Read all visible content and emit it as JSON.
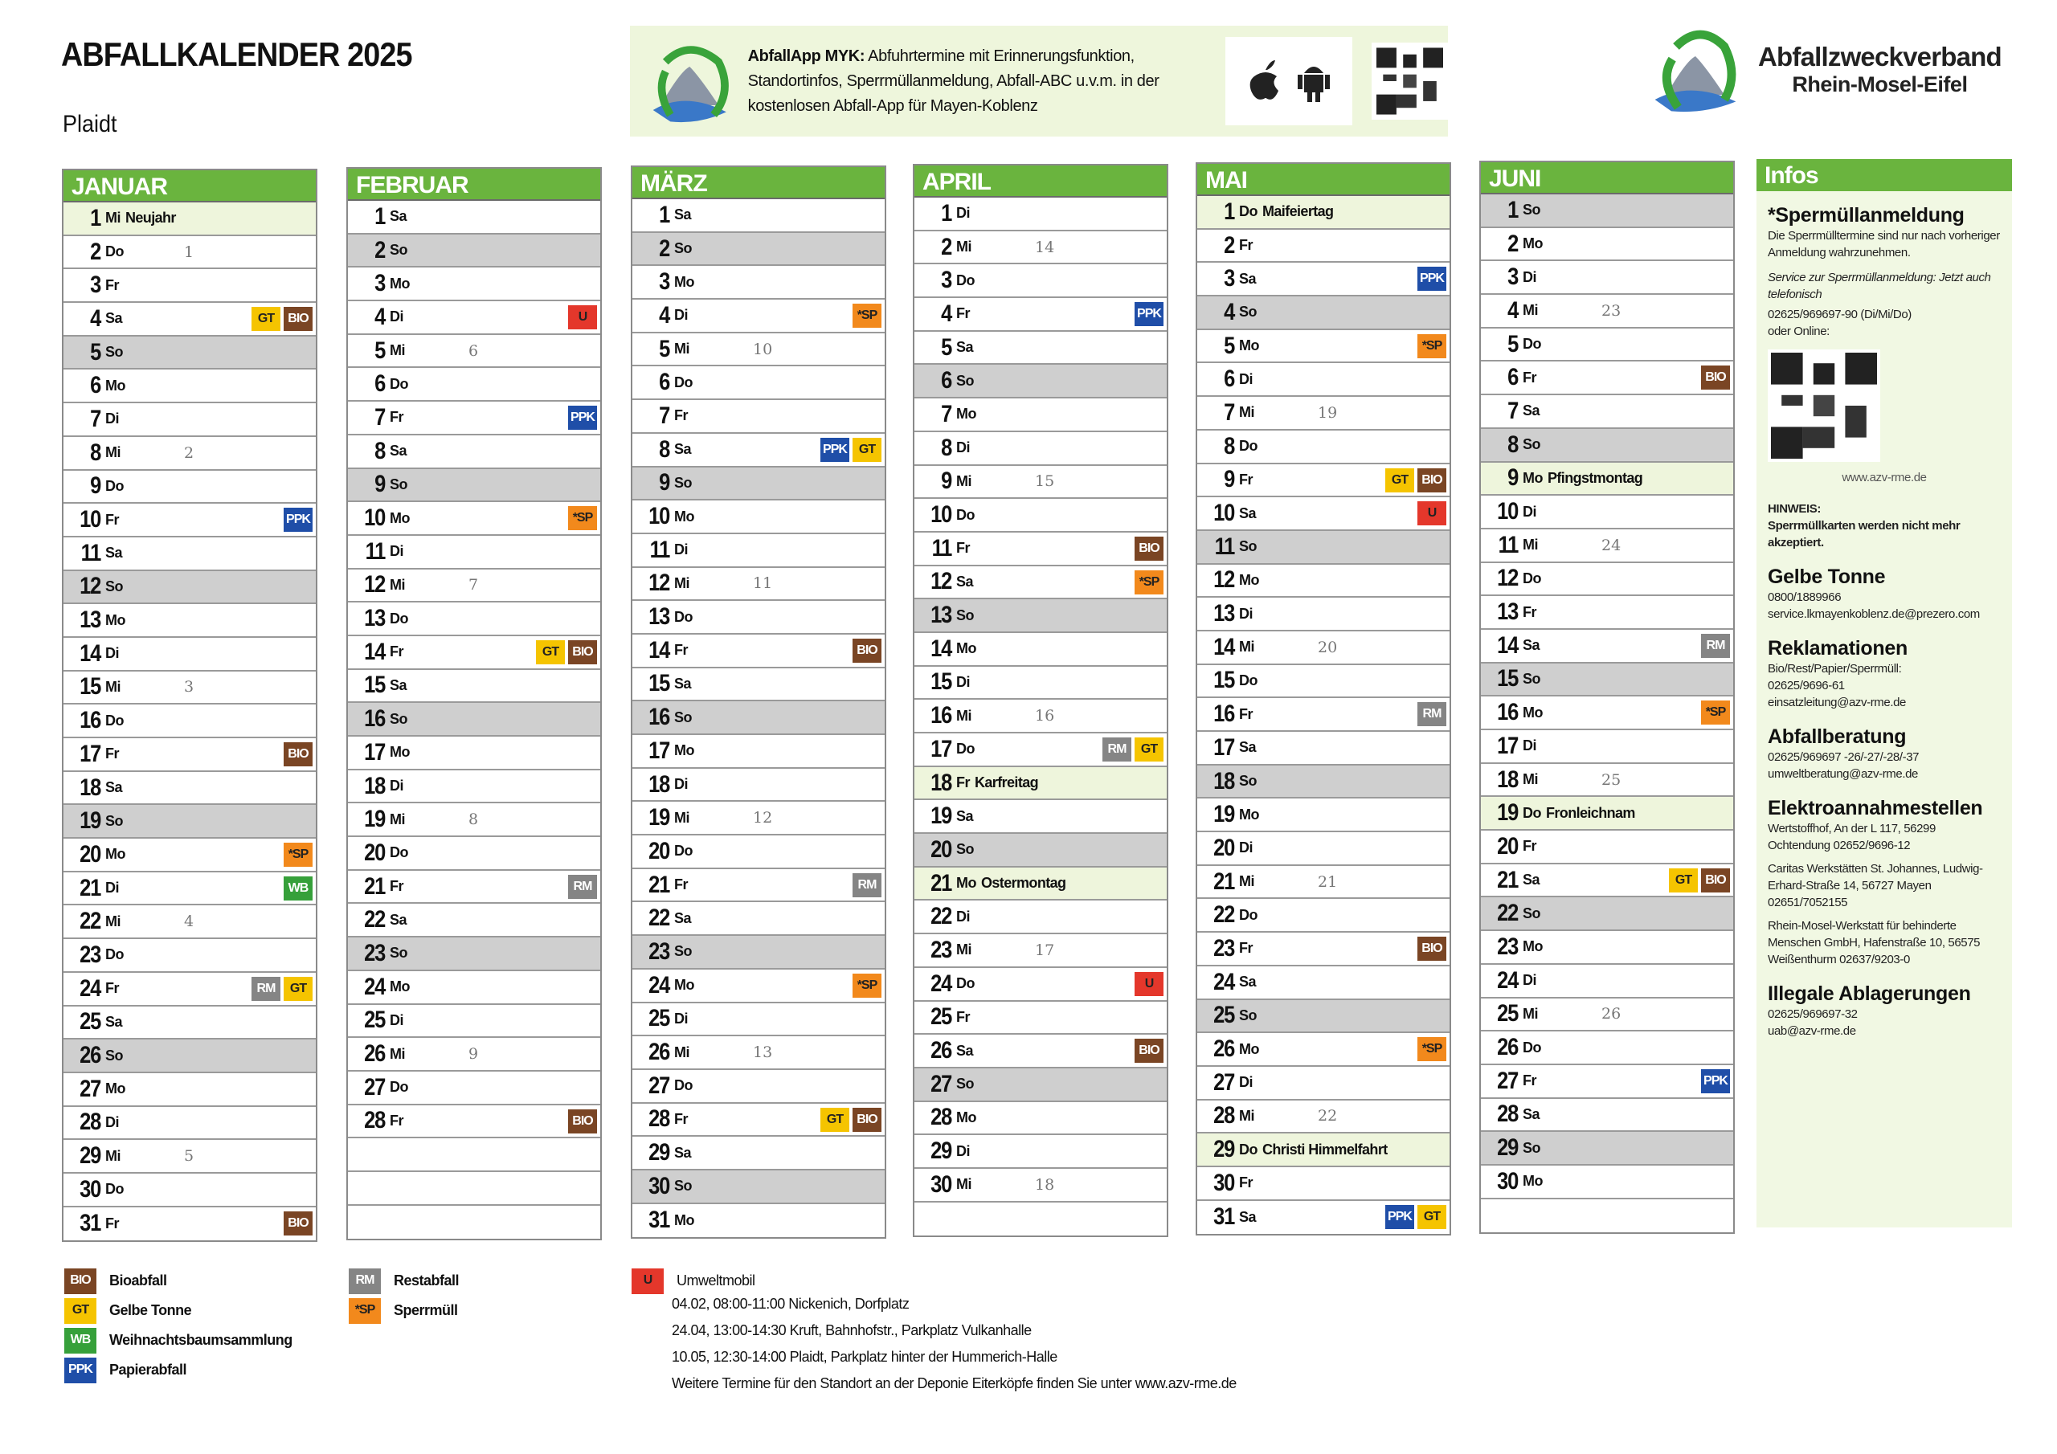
{
  "header": {
    "title": "ABFALLKALENDER 2025",
    "place": "Plaidt"
  },
  "app": {
    "name": "AbfallApp MYK:",
    "text": "Abfuhrtermine mit Erinnerungsfunktion, Standortinfos, Sperrmüllanmeldung, Abfall-ABC u.v.m. in der kostenlosen Abfall-App für Mayen-Koblenz",
    "icons": [
      "app-logo-icon",
      "apple-icon",
      "android-icon",
      "qr-code-icon"
    ]
  },
  "brand": {
    "line1": "Abfallzweckverband",
    "line2": "Rhein-Mosel-Eifel"
  },
  "colors": {
    "header_green": "#6ab43e",
    "sunday": "#cfcfcf",
    "holiday": "#eef5dc",
    "BIO": "#7a4524",
    "GT": "#f5c400",
    "WB": "#36a03a",
    "PPK": "#1f4ea8",
    "RM": "#858585",
    "SP": "#f2891c",
    "U": "#e4372b"
  },
  "months": [
    {
      "name": "JANUAR",
      "days": [
        {
          "d": "1",
          "wd": "Mi",
          "hol": "Neujahr"
        },
        {
          "d": "2",
          "wd": "Do",
          "wk": "1"
        },
        {
          "d": "3",
          "wd": "Fr"
        },
        {
          "d": "4",
          "wd": "Sa",
          "tags": [
            "GT",
            "BIO"
          ]
        },
        {
          "d": "5",
          "wd": "So"
        },
        {
          "d": "6",
          "wd": "Mo"
        },
        {
          "d": "7",
          "wd": "Di"
        },
        {
          "d": "8",
          "wd": "Mi",
          "wk": "2"
        },
        {
          "d": "9",
          "wd": "Do"
        },
        {
          "d": "10",
          "wd": "Fr",
          "tags": [
            "PPK"
          ]
        },
        {
          "d": "11",
          "wd": "Sa"
        },
        {
          "d": "12",
          "wd": "So"
        },
        {
          "d": "13",
          "wd": "Mo"
        },
        {
          "d": "14",
          "wd": "Di"
        },
        {
          "d": "15",
          "wd": "Mi",
          "wk": "3"
        },
        {
          "d": "16",
          "wd": "Do"
        },
        {
          "d": "17",
          "wd": "Fr",
          "tags": [
            "BIO"
          ]
        },
        {
          "d": "18",
          "wd": "Sa"
        },
        {
          "d": "19",
          "wd": "So"
        },
        {
          "d": "20",
          "wd": "Mo",
          "tags": [
            "*SP"
          ]
        },
        {
          "d": "21",
          "wd": "Di",
          "tags": [
            "WB"
          ]
        },
        {
          "d": "22",
          "wd": "Mi",
          "wk": "4"
        },
        {
          "d": "23",
          "wd": "Do"
        },
        {
          "d": "24",
          "wd": "Fr",
          "tags": [
            "RM",
            "GT"
          ]
        },
        {
          "d": "25",
          "wd": "Sa"
        },
        {
          "d": "26",
          "wd": "So"
        },
        {
          "d": "27",
          "wd": "Mo"
        },
        {
          "d": "28",
          "wd": "Di"
        },
        {
          "d": "29",
          "wd": "Mi",
          "wk": "5"
        },
        {
          "d": "30",
          "wd": "Do"
        },
        {
          "d": "31",
          "wd": "Fr",
          "tags": [
            "BIO"
          ]
        }
      ]
    },
    {
      "name": "FEBRUAR",
      "days": [
        {
          "d": "1",
          "wd": "Sa"
        },
        {
          "d": "2",
          "wd": "So"
        },
        {
          "d": "3",
          "wd": "Mo"
        },
        {
          "d": "4",
          "wd": "Di",
          "tags": [
            "U"
          ]
        },
        {
          "d": "5",
          "wd": "Mi",
          "wk": "6"
        },
        {
          "d": "6",
          "wd": "Do"
        },
        {
          "d": "7",
          "wd": "Fr",
          "tags": [
            "PPK"
          ]
        },
        {
          "d": "8",
          "wd": "Sa"
        },
        {
          "d": "9",
          "wd": "So"
        },
        {
          "d": "10",
          "wd": "Mo",
          "tags": [
            "*SP"
          ]
        },
        {
          "d": "11",
          "wd": "Di"
        },
        {
          "d": "12",
          "wd": "Mi",
          "wk": "7"
        },
        {
          "d": "13",
          "wd": "Do"
        },
        {
          "d": "14",
          "wd": "Fr",
          "tags": [
            "GT",
            "BIO"
          ]
        },
        {
          "d": "15",
          "wd": "Sa"
        },
        {
          "d": "16",
          "wd": "So"
        },
        {
          "d": "17",
          "wd": "Mo"
        },
        {
          "d": "18",
          "wd": "Di"
        },
        {
          "d": "19",
          "wd": "Mi",
          "wk": "8"
        },
        {
          "d": "20",
          "wd": "Do"
        },
        {
          "d": "21",
          "wd": "Fr",
          "tags": [
            "RM"
          ]
        },
        {
          "d": "22",
          "wd": "Sa"
        },
        {
          "d": "23",
          "wd": "So"
        },
        {
          "d": "24",
          "wd": "Mo"
        },
        {
          "d": "25",
          "wd": "Di"
        },
        {
          "d": "26",
          "wd": "Mi",
          "wk": "9"
        },
        {
          "d": "27",
          "wd": "Do"
        },
        {
          "d": "28",
          "wd": "Fr",
          "tags": [
            "BIO"
          ]
        }
      ]
    },
    {
      "name": "MÄRZ",
      "days": [
        {
          "d": "1",
          "wd": "Sa"
        },
        {
          "d": "2",
          "wd": "So"
        },
        {
          "d": "3",
          "wd": "Mo"
        },
        {
          "d": "4",
          "wd": "Di",
          "tags": [
            "*SP"
          ]
        },
        {
          "d": "5",
          "wd": "Mi",
          "wk": "10"
        },
        {
          "d": "6",
          "wd": "Do"
        },
        {
          "d": "7",
          "wd": "Fr"
        },
        {
          "d": "8",
          "wd": "Sa",
          "tags": [
            "PPK",
            "GT"
          ]
        },
        {
          "d": "9",
          "wd": "So"
        },
        {
          "d": "10",
          "wd": "Mo"
        },
        {
          "d": "11",
          "wd": "Di"
        },
        {
          "d": "12",
          "wd": "Mi",
          "wk": "11"
        },
        {
          "d": "13",
          "wd": "Do"
        },
        {
          "d": "14",
          "wd": "Fr",
          "tags": [
            "BIO"
          ]
        },
        {
          "d": "15",
          "wd": "Sa"
        },
        {
          "d": "16",
          "wd": "So"
        },
        {
          "d": "17",
          "wd": "Mo"
        },
        {
          "d": "18",
          "wd": "Di"
        },
        {
          "d": "19",
          "wd": "Mi",
          "wk": "12"
        },
        {
          "d": "20",
          "wd": "Do"
        },
        {
          "d": "21",
          "wd": "Fr",
          "tags": [
            "RM"
          ]
        },
        {
          "d": "22",
          "wd": "Sa"
        },
        {
          "d": "23",
          "wd": "So"
        },
        {
          "d": "24",
          "wd": "Mo",
          "tags": [
            "*SP"
          ]
        },
        {
          "d": "25",
          "wd": "Di"
        },
        {
          "d": "26",
          "wd": "Mi",
          "wk": "13"
        },
        {
          "d": "27",
          "wd": "Do"
        },
        {
          "d": "28",
          "wd": "Fr",
          "tags": [
            "GT",
            "BIO"
          ]
        },
        {
          "d": "29",
          "wd": "Sa"
        },
        {
          "d": "30",
          "wd": "So"
        },
        {
          "d": "31",
          "wd": "Mo"
        }
      ]
    },
    {
      "name": "APRIL",
      "days": [
        {
          "d": "1",
          "wd": "Di"
        },
        {
          "d": "2",
          "wd": "Mi",
          "wk": "14"
        },
        {
          "d": "3",
          "wd": "Do"
        },
        {
          "d": "4",
          "wd": "Fr",
          "tags": [
            "PPK"
          ]
        },
        {
          "d": "5",
          "wd": "Sa"
        },
        {
          "d": "6",
          "wd": "So"
        },
        {
          "d": "7",
          "wd": "Mo"
        },
        {
          "d": "8",
          "wd": "Di"
        },
        {
          "d": "9",
          "wd": "Mi",
          "wk": "15"
        },
        {
          "d": "10",
          "wd": "Do"
        },
        {
          "d": "11",
          "wd": "Fr",
          "tags": [
            "BIO"
          ]
        },
        {
          "d": "12",
          "wd": "Sa",
          "tags": [
            "*SP"
          ]
        },
        {
          "d": "13",
          "wd": "So"
        },
        {
          "d": "14",
          "wd": "Mo"
        },
        {
          "d": "15",
          "wd": "Di"
        },
        {
          "d": "16",
          "wd": "Mi",
          "wk": "16"
        },
        {
          "d": "17",
          "wd": "Do",
          "tags": [
            "RM",
            "GT"
          ]
        },
        {
          "d": "18",
          "wd": "Fr",
          "hol": "Karfreitag"
        },
        {
          "d": "19",
          "wd": "Sa"
        },
        {
          "d": "20",
          "wd": "So"
        },
        {
          "d": "21",
          "wd": "Mo",
          "hol": "Ostermontag"
        },
        {
          "d": "22",
          "wd": "Di"
        },
        {
          "d": "23",
          "wd": "Mi",
          "wk": "17"
        },
        {
          "d": "24",
          "wd": "Do",
          "tags": [
            "U"
          ]
        },
        {
          "d": "25",
          "wd": "Fr"
        },
        {
          "d": "26",
          "wd": "Sa",
          "tags": [
            "BIO"
          ]
        },
        {
          "d": "27",
          "wd": "So"
        },
        {
          "d": "28",
          "wd": "Mo"
        },
        {
          "d": "29",
          "wd": "Di"
        },
        {
          "d": "30",
          "wd": "Mi",
          "wk": "18"
        }
      ]
    },
    {
      "name": "MAI",
      "days": [
        {
          "d": "1",
          "wd": "Do",
          "hol": "Maifeiertag"
        },
        {
          "d": "2",
          "wd": "Fr"
        },
        {
          "d": "3",
          "wd": "Sa",
          "tags": [
            "PPK"
          ]
        },
        {
          "d": "4",
          "wd": "So"
        },
        {
          "d": "5",
          "wd": "Mo",
          "tags": [
            "*SP"
          ]
        },
        {
          "d": "6",
          "wd": "Di"
        },
        {
          "d": "7",
          "wd": "Mi",
          "wk": "19"
        },
        {
          "d": "8",
          "wd": "Do"
        },
        {
          "d": "9",
          "wd": "Fr",
          "tags": [
            "GT",
            "BIO"
          ]
        },
        {
          "d": "10",
          "wd": "Sa",
          "tags": [
            "U"
          ]
        },
        {
          "d": "11",
          "wd": "So"
        },
        {
          "d": "12",
          "wd": "Mo"
        },
        {
          "d": "13",
          "wd": "Di"
        },
        {
          "d": "14",
          "wd": "Mi",
          "wk": "20"
        },
        {
          "d": "15",
          "wd": "Do"
        },
        {
          "d": "16",
          "wd": "Fr",
          "tags": [
            "RM"
          ]
        },
        {
          "d": "17",
          "wd": "Sa"
        },
        {
          "d": "18",
          "wd": "So"
        },
        {
          "d": "19",
          "wd": "Mo"
        },
        {
          "d": "20",
          "wd": "Di"
        },
        {
          "d": "21",
          "wd": "Mi",
          "wk": "21"
        },
        {
          "d": "22",
          "wd": "Do"
        },
        {
          "d": "23",
          "wd": "Fr",
          "tags": [
            "BIO"
          ]
        },
        {
          "d": "24",
          "wd": "Sa"
        },
        {
          "d": "25",
          "wd": "So"
        },
        {
          "d": "26",
          "wd": "Mo",
          "tags": [
            "*SP"
          ]
        },
        {
          "d": "27",
          "wd": "Di"
        },
        {
          "d": "28",
          "wd": "Mi",
          "wk": "22"
        },
        {
          "d": "29",
          "wd": "Do",
          "hol": "Christi Himmelfahrt"
        },
        {
          "d": "30",
          "wd": "Fr"
        },
        {
          "d": "31",
          "wd": "Sa",
          "tags": [
            "PPK",
            "GT"
          ]
        }
      ]
    },
    {
      "name": "JUNI",
      "days": [
        {
          "d": "1",
          "wd": "So"
        },
        {
          "d": "2",
          "wd": "Mo"
        },
        {
          "d": "3",
          "wd": "Di"
        },
        {
          "d": "4",
          "wd": "Mi",
          "wk": "23"
        },
        {
          "d": "5",
          "wd": "Do"
        },
        {
          "d": "6",
          "wd": "Fr",
          "tags": [
            "BIO"
          ]
        },
        {
          "d": "7",
          "wd": "Sa"
        },
        {
          "d": "8",
          "wd": "So"
        },
        {
          "d": "9",
          "wd": "Mo",
          "hol": "Pfingstmontag"
        },
        {
          "d": "10",
          "wd": "Di"
        },
        {
          "d": "11",
          "wd": "Mi",
          "wk": "24"
        },
        {
          "d": "12",
          "wd": "Do"
        },
        {
          "d": "13",
          "wd": "Fr"
        },
        {
          "d": "14",
          "wd": "Sa",
          "tags": [
            "RM"
          ]
        },
        {
          "d": "15",
          "wd": "So"
        },
        {
          "d": "16",
          "wd": "Mo",
          "tags": [
            "*SP"
          ]
        },
        {
          "d": "17",
          "wd": "Di"
        },
        {
          "d": "18",
          "wd": "Mi",
          "wk": "25"
        },
        {
          "d": "19",
          "wd": "Do",
          "hol": "Fronleichnam"
        },
        {
          "d": "20",
          "wd": "Fr"
        },
        {
          "d": "21",
          "wd": "Sa",
          "tags": [
            "GT",
            "BIO"
          ]
        },
        {
          "d": "22",
          "wd": "So"
        },
        {
          "d": "23",
          "wd": "Mo"
        },
        {
          "d": "24",
          "wd": "Di"
        },
        {
          "d": "25",
          "wd": "Mi",
          "wk": "26"
        },
        {
          "d": "26",
          "wd": "Do"
        },
        {
          "d": "27",
          "wd": "Fr",
          "tags": [
            "PPK"
          ]
        },
        {
          "d": "28",
          "wd": "Sa"
        },
        {
          "d": "29",
          "wd": "So"
        },
        {
          "d": "30",
          "wd": "Mo"
        }
      ]
    }
  ],
  "infos": {
    "title": "Infos",
    "sperr_title": "*Spermüllanmeldung",
    "sperr_text": "Die Sperrmülltermine sind nur nach vorheriger Anmeldung wahrzunehmen.",
    "sperr_service": "Service zur Sperrmüllanmeldung: Jetzt auch telefonisch",
    "sperr_phone": "02625/969697-90 (Di/Mi/Do)",
    "sperr_online": "oder Online:",
    "sperr_url": "www.azv-rme.de",
    "hint_title": "HINWEIS:",
    "hint_text": "Sperrmüllkarten werden nicht mehr akzeptiert.",
    "gelbe_title": "Gelbe Tonne",
    "gelbe_phone": "0800/1889966",
    "gelbe_mail": "service.lkmayenkoblenz.de@prezero.com",
    "rekl_title": "Reklamationen",
    "rekl_text": "Bio/Rest/Papier/Sperrmüll:",
    "rekl_phone": "02625/9696-61",
    "rekl_mail": "einsatzleitung@azv-rme.de",
    "ber_title": "Abfallberatung",
    "ber_phone": "02625/969697 -26/-27/-28/-37",
    "ber_mail": "umweltberatung@azv-rme.de",
    "elektro_title": "Elektroannahmestellen",
    "elektro_1": "Wertstoffhof, An der L 117, 56299 Ochtendung 02652/9696-12",
    "elektro_2": "Caritas Werkstätten St. Johannes, Ludwig-Erhard-Straße 14, 56727 Mayen 02651/7052155",
    "elektro_3": "Rhein-Mosel-Werkstatt für behinderte Menschen GmbH, Hafenstraße 10, 56575 Weißenthurm 02637/9203-0",
    "illegal_title": "Illegale Ablagerungen",
    "illegal_phone": "02625/969697-32",
    "illegal_mail": "uab@azv-rme.de"
  },
  "legend": {
    "col1": [
      {
        "tag": "BIO",
        "label": "Bioabfall"
      },
      {
        "tag": "GT",
        "label": "Gelbe Tonne"
      },
      {
        "tag": "WB",
        "label": "Weihnachtsbaumsammlung"
      },
      {
        "tag": "PPK",
        "label": "Papierabfall"
      }
    ],
    "col2": [
      {
        "tag": "RM",
        "label": "Restabfall"
      },
      {
        "tag": "*SP",
        "label": "Sperrmüll"
      }
    ],
    "umwelt": {
      "tag": "U",
      "label": "Umweltmobil",
      "lines": [
        "04.02, 08:00-11:00 Nickenich, Dorfplatz",
        "24.04, 13:00-14:30 Kruft, Bahnhofstr., Parkplatz Vulkanhalle",
        "10.05, 12:30-14:00 Plaidt, Parkplatz hinter der Hummerich-Halle",
        "Weitere Termine für den Standort an der Deponie Eiterköpfe finden Sie unter www.azv-rme.de"
      ]
    }
  }
}
